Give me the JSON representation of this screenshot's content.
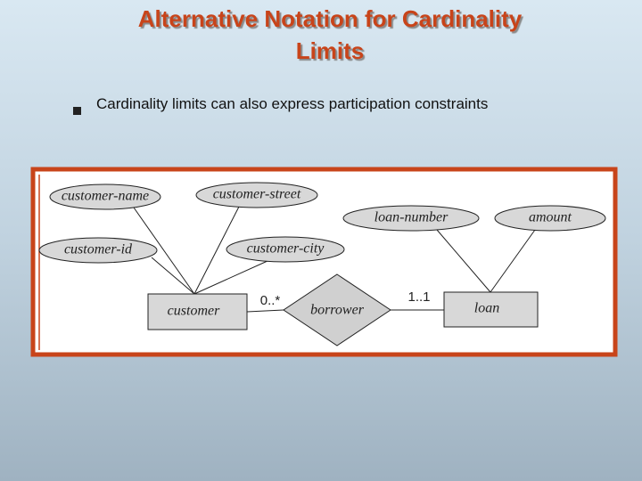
{
  "header": {
    "title_lines": [
      "Alternative Notation for Cardinality",
      "Limits"
    ]
  },
  "bullets": [
    {
      "marker": "n",
      "text": "Cardinality limits can also express participation constraints"
    }
  ],
  "diagram": {
    "entities": [
      {
        "label": "customer"
      },
      {
        "label": "loan"
      }
    ],
    "relationship": {
      "label": "borrower"
    },
    "attributes": [
      {
        "label": "customer-name"
      },
      {
        "label": "customer-street"
      },
      {
        "label": "customer-id"
      },
      {
        "label": "customer-city"
      },
      {
        "label": "loan-number"
      },
      {
        "label": "amount"
      }
    ],
    "cardinalities": [
      {
        "label": "0..*"
      },
      {
        "label": "1..1"
      }
    ]
  }
}
